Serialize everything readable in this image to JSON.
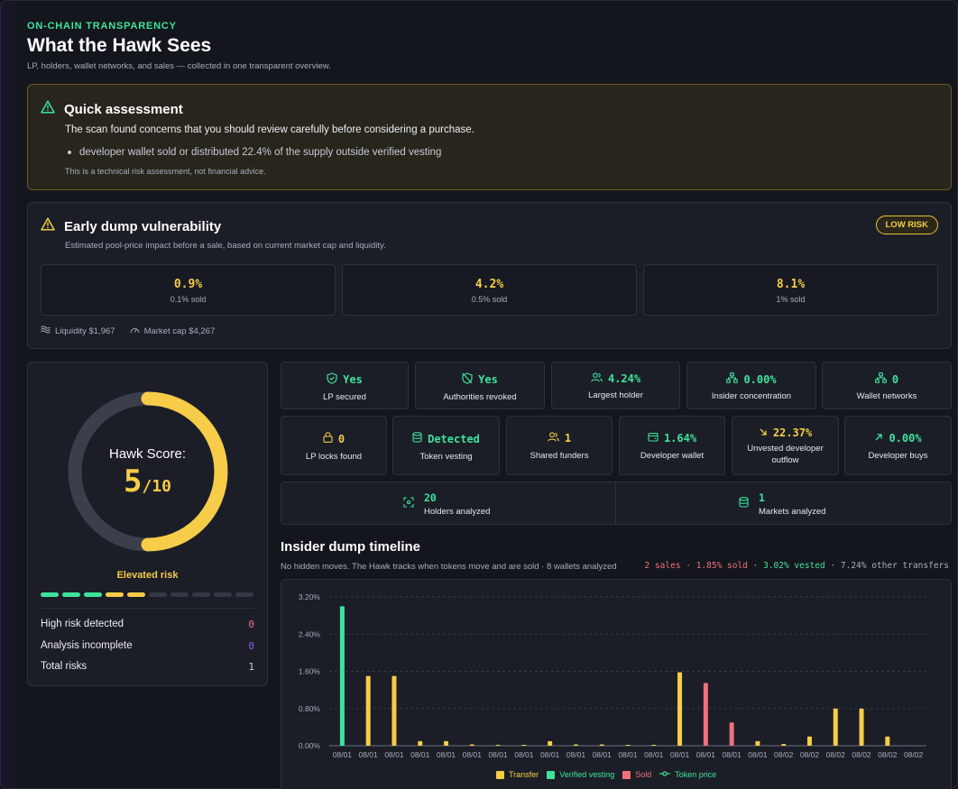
{
  "header": {
    "eyebrow": "ON-CHAIN TRANSPARENCY",
    "title": "What the Hawk Sees",
    "subtitle": "LP, holders, wallet networks, and sales — collected in one transparent overview."
  },
  "quick_assessment": {
    "title": "Quick assessment",
    "description": "The scan found concerns that you should review carefully before considering a purchase.",
    "bullets": [
      "developer wallet sold or distributed 22.4% of the supply outside verified vesting"
    ],
    "disclaimer": "This is a technical risk assessment, not financial advice."
  },
  "early_dump": {
    "title": "Early dump vulnerability",
    "description": "Estimated pool-price impact before a sale, based on current market cap and liquidity.",
    "badge": "LOW RISK",
    "impacts": [
      {
        "pct": "0.9%",
        "label": "0.1% sold"
      },
      {
        "pct": "4.2%",
        "label": "0.5% sold"
      },
      {
        "pct": "8.1%",
        "label": "1% sold"
      }
    ],
    "liquidity": "Liquidity $1,967",
    "market_cap": "Market cap $4,267"
  },
  "score": {
    "label": "Hawk Score:",
    "value": "5",
    "max": "/10",
    "fraction": 0.5,
    "level": "Elevated risk",
    "segments": [
      {
        "color": "#3fe39b"
      },
      {
        "color": "#3fe39b"
      },
      {
        "color": "#3fe39b"
      },
      {
        "color": "#f6cc48"
      },
      {
        "color": "#f6cc48"
      },
      {
        "color": "#343946"
      },
      {
        "color": "#343946"
      },
      {
        "color": "#343946"
      },
      {
        "color": "#343946"
      },
      {
        "color": "#343946"
      }
    ],
    "rows": [
      {
        "label": "High risk detected",
        "value": "0",
        "color": "#f0707a"
      },
      {
        "label": "Analysis incomplete",
        "value": "0",
        "color": "#8b5cf6"
      },
      {
        "label": "Total risks",
        "value": "1",
        "color": "#c8ccd6"
      }
    ]
  },
  "metrics_row1": [
    {
      "icon": "shield-check-icon",
      "value": "Yes",
      "label": "LP secured",
      "color": "#3fe39b"
    },
    {
      "icon": "shield-off-icon",
      "value": "Yes",
      "label": "Authorities revoked",
      "color": "#3fe39b"
    },
    {
      "icon": "users-icon",
      "value": "4.24%",
      "label": "Largest holder",
      "color": "#3fe39b"
    },
    {
      "icon": "network-icon",
      "value": "0.00%",
      "label": "Insider concentration",
      "color": "#3fe39b"
    },
    {
      "icon": "network-icon",
      "value": "0",
      "label": "Wallet networks",
      "color": "#3fe39b"
    }
  ],
  "metrics_row2": [
    {
      "icon": "lock-icon",
      "value": "0",
      "label": "LP locks found",
      "color": "#f6cc48"
    },
    {
      "icon": "database-icon",
      "value": "Detected",
      "label": "Token vesting",
      "color": "#3fe39b"
    },
    {
      "icon": "users-icon",
      "value": "1",
      "label": "Shared funders",
      "color": "#f6cc48"
    },
    {
      "icon": "wallet-icon",
      "value": "1.64%",
      "label": "Developer wallet",
      "color": "#3fe39b"
    },
    {
      "icon": "arrow-down-right-icon",
      "value": "22.37%",
      "label": "Unvested developer outflow",
      "color": "#f6cc48"
    },
    {
      "icon": "arrow-up-right-icon",
      "value": "0.00%",
      "label": "Developer buys",
      "color": "#3fe39b"
    }
  ],
  "metrics_row3": [
    {
      "icon": "scan-icon",
      "value": "20",
      "label": "Holders analyzed"
    },
    {
      "icon": "database-icon",
      "value": "1",
      "label": "Markets analyzed"
    }
  ],
  "timeline": {
    "title": "Insider dump timeline",
    "subtitle": "No hidden moves. The Hawk tracks when tokens move and are sold · 8 wallets analyzed",
    "stats": {
      "sales": "2 sales · 1.85% sold",
      "vested": "3.02% vested",
      "other": "7.24% other transfers"
    }
  },
  "chart_data": {
    "type": "bar",
    "ylim": [
      0,
      3.2
    ],
    "y_ticks": [
      "0.00%",
      "0.80%",
      "1.60%",
      "2.40%",
      "3.20%"
    ],
    "categories": [
      "08/01",
      "08/01",
      "08/01",
      "08/01",
      "08/01",
      "08/01",
      "08/01",
      "08/01",
      "08/01",
      "08/01",
      "08/01",
      "08/01",
      "08/01",
      "08/01",
      "08/01",
      "08/01",
      "08/01",
      "08/02",
      "08/02",
      "08/02",
      "08/02",
      "08/02",
      "08/02"
    ],
    "values": [
      3.0,
      1.5,
      1.5,
      0.1,
      0.1,
      0.03,
      0.02,
      0.02,
      0.1,
      0.03,
      0.03,
      0.02,
      0.02,
      1.58,
      1.35,
      0.5,
      0.1,
      0.04,
      0.2,
      0.8,
      0.8,
      0.2,
      0
    ],
    "kinds": [
      "vesting",
      "transfer",
      "transfer",
      "transfer",
      "transfer",
      "transfer",
      "transfer",
      "transfer",
      "transfer",
      "transfer",
      "transfer",
      "transfer",
      "transfer",
      "transfer",
      "sold",
      "sold",
      "transfer",
      "transfer",
      "transfer",
      "transfer",
      "transfer",
      "transfer",
      "transfer"
    ],
    "legend": [
      {
        "name": "Transfer",
        "color": "#f6cc48"
      },
      {
        "name": "Verified vesting",
        "color": "#3fe39b"
      },
      {
        "name": "Sold",
        "color": "#f0707a"
      },
      {
        "name": "Token price",
        "color": "#3fe39b"
      }
    ]
  }
}
